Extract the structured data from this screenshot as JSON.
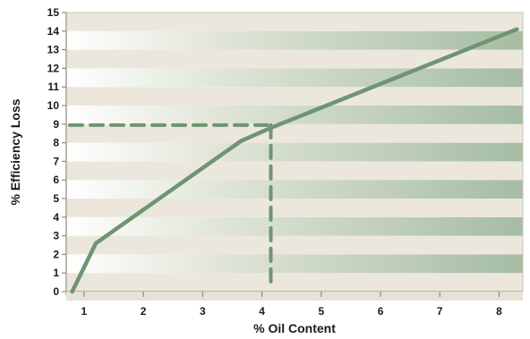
{
  "chart_data": {
    "type": "line",
    "title": "",
    "xlabel": "% Oil Content",
    "ylabel": "% Efficiency Loss",
    "xlim": [
      0.7,
      8.4
    ],
    "ylim": [
      0,
      15
    ],
    "x_ticks": [
      1,
      2,
      3,
      4,
      5,
      6,
      7,
      8
    ],
    "y_ticks": [
      0,
      1,
      2,
      3,
      4,
      5,
      6,
      7,
      8,
      9,
      10,
      11,
      12,
      13,
      14,
      15
    ],
    "grid": "horizontal bands",
    "legend": "none",
    "series": [
      {
        "x": [
          0.8,
          1.2,
          3.65,
          4.15,
          8.3
        ],
        "y": [
          0.0,
          2.6,
          8.1,
          8.8,
          14.1
        ]
      }
    ],
    "annotations": [
      {
        "type": "dashed-guide",
        "x": 4.15,
        "y": 8.95
      }
    ],
    "colors": {
      "line": "#6f9472",
      "band_light": "#ebe7dc",
      "band_dark_left": "#ffffff",
      "band_dark_right": "#a5bca3",
      "plot_border": "#c9c4b5",
      "axis": "#bdb8aa"
    }
  }
}
